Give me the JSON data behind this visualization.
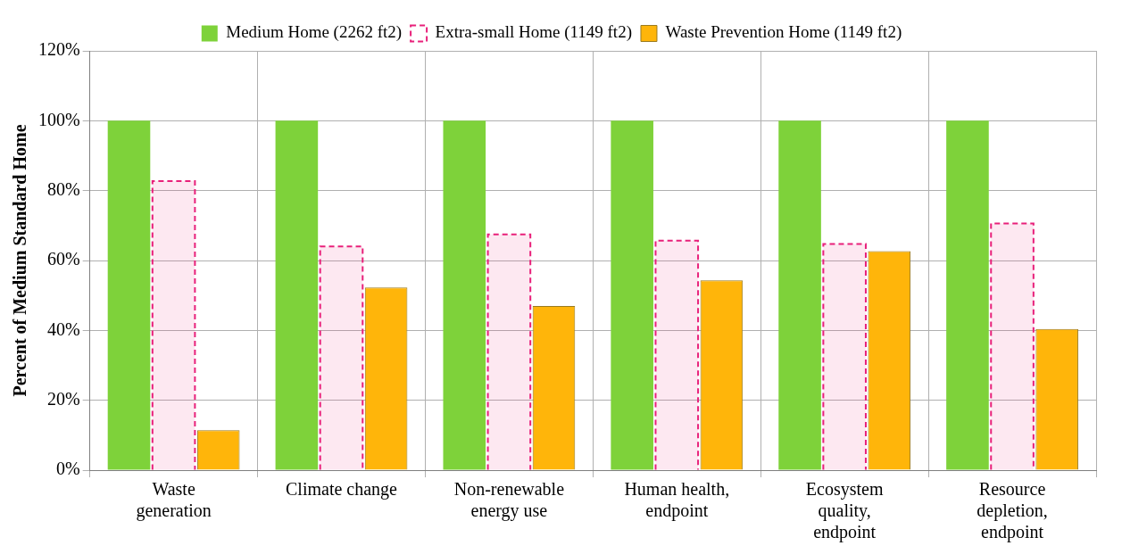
{
  "chart_data": {
    "type": "bar",
    "ylabel": "Percent of Medium Standard Home",
    "categories": [
      "Waste\ngeneration",
      "Climate change",
      "Non-renewable\nenergy use",
      "Human health,\nendpoint",
      "Ecosystem\nquality,\nendpoint",
      "Resource\ndepletion,\nendpoint"
    ],
    "series": [
      {
        "name": "Medium Home (2262 ft2)",
        "color": "#7ed23a",
        "values": [
          100,
          100,
          100,
          100,
          100,
          100
        ]
      },
      {
        "name": "Extra-small Home (1149 ft2)",
        "color": "#e8207a",
        "line_style": "dashed",
        "values": [
          82.7,
          64,
          67.5,
          65.7,
          64.7,
          70.6
        ]
      },
      {
        "name": "Waste Prevention Home (1149 ft2)",
        "color": "#ffb50a",
        "values": [
          11.4,
          52.3,
          47,
          54.3,
          62.7,
          40.4
        ]
      }
    ],
    "ylim": [
      0,
      120
    ],
    "yticks": [
      {
        "value": 0,
        "label": "0%"
      },
      {
        "value": 20,
        "label": "20%"
      },
      {
        "value": 40,
        "label": "40%"
      },
      {
        "value": 60,
        "label": "60%"
      },
      {
        "value": 80,
        "label": "80%"
      },
      {
        "value": 100,
        "label": "100%"
      },
      {
        "value": 120,
        "label": "120%"
      }
    ],
    "grid": true,
    "legend": "top"
  }
}
